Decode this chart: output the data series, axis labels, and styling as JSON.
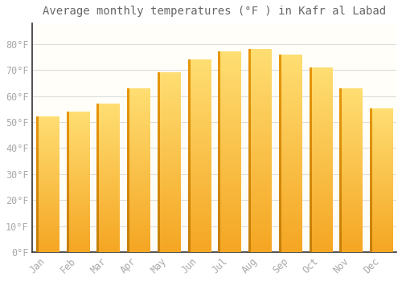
{
  "months": [
    "Jan",
    "Feb",
    "Mar",
    "Apr",
    "May",
    "Jun",
    "Jul",
    "Aug",
    "Sep",
    "Oct",
    "Nov",
    "Dec"
  ],
  "values": [
    52,
    54,
    57,
    63,
    69,
    74,
    77,
    78,
    76,
    71,
    63,
    55
  ],
  "bar_color_top": "#FFD966",
  "bar_color_bottom": "#F5A623",
  "bar_color_left": "#E8960A",
  "title": "Average monthly temperatures (°F ) in Kafr al Labad",
  "ylim": [
    0,
    88
  ],
  "yticks": [
    0,
    10,
    20,
    30,
    40,
    50,
    60,
    70,
    80
  ],
  "ytick_labels": [
    "0°F",
    "10°F",
    "20°F",
    "30°F",
    "40°F",
    "50°F",
    "60°F",
    "70°F",
    "80°F"
  ],
  "background_color": "#ffffff",
  "plot_bg_color": "#fffef8",
  "grid_color": "#dddddd",
  "title_fontsize": 10,
  "tick_fontsize": 8.5,
  "font_color": "#aaaaaa",
  "title_color": "#666666"
}
